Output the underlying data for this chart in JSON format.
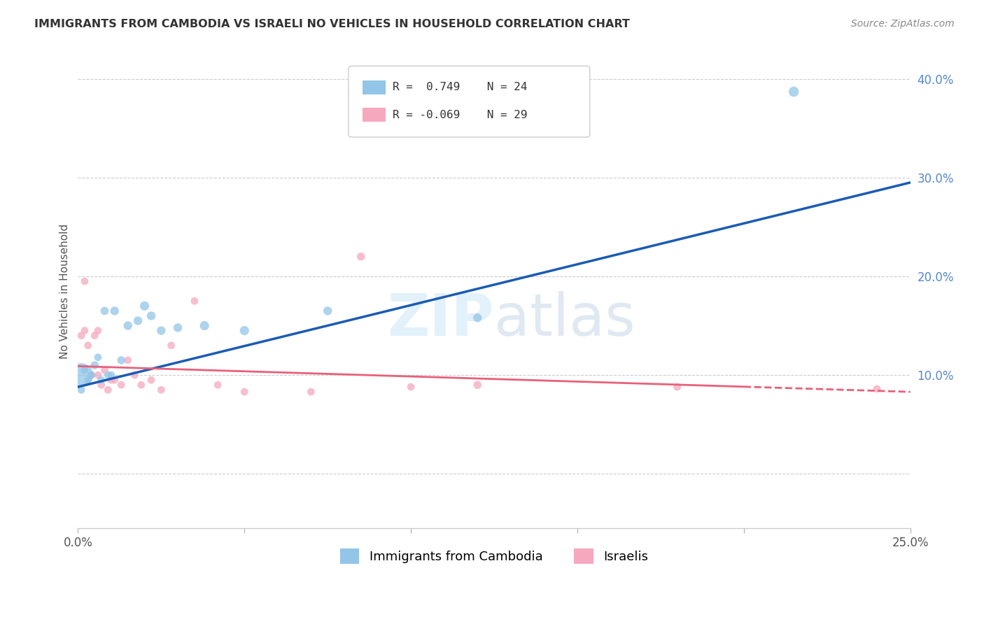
{
  "title": "IMMIGRANTS FROM CAMBODIA VS ISRAELI NO VEHICLES IN HOUSEHOLD CORRELATION CHART",
  "source": "Source: ZipAtlas.com",
  "ylabel": "No Vehicles in Household",
  "xlim": [
    0.0,
    0.25
  ],
  "ylim": [
    -0.055,
    0.425
  ],
  "xticks": [
    0.0,
    0.05,
    0.1,
    0.15,
    0.2,
    0.25
  ],
  "xtick_labels": [
    "0.0%",
    "",
    "",
    "",
    "",
    "25.0%"
  ],
  "yticks": [
    0.0,
    0.1,
    0.2,
    0.3,
    0.4
  ],
  "ytick_labels": [
    "",
    "10.0%",
    "20.0%",
    "30.0%",
    "40.0%"
  ],
  "legend_R1": "R =  0.749",
  "legend_N1": "N = 24",
  "legend_R2": "R = -0.069",
  "legend_N2": "N = 29",
  "label1": "Immigrants from Cambodia",
  "label2": "Israelis",
  "color1": "#92C5E8",
  "color2": "#F5A8BE",
  "trendline1_color": "#1A5BB5",
  "trendline2_color": "#E8607A",
  "background": "#FFFFFF",
  "watermark": "ZIPAtlas",
  "trendline1_x0": 0.0,
  "trendline1_y0": 0.088,
  "trendline1_x1": 0.25,
  "trendline1_y1": 0.295,
  "trendline2_x0": 0.0,
  "trendline2_y0": 0.109,
  "trendline2_x1": 0.25,
  "trendline2_y1": 0.083,
  "cambodia_x": [
    0.001,
    0.001,
    0.002,
    0.003,
    0.004,
    0.005,
    0.006,
    0.007,
    0.008,
    0.009,
    0.01,
    0.011,
    0.013,
    0.015,
    0.018,
    0.02,
    0.022,
    0.025,
    0.03,
    0.038,
    0.05,
    0.075,
    0.12,
    0.215
  ],
  "cambodia_y": [
    0.1,
    0.085,
    0.105,
    0.095,
    0.1,
    0.11,
    0.118,
    0.095,
    0.165,
    0.1,
    0.1,
    0.165,
    0.115,
    0.15,
    0.155,
    0.17,
    0.16,
    0.145,
    0.148,
    0.15,
    0.145,
    0.165,
    0.158,
    0.387
  ],
  "cambodia_size": [
    600,
    60,
    60,
    60,
    60,
    70,
    60,
    60,
    70,
    60,
    60,
    80,
    70,
    80,
    80,
    90,
    80,
    80,
    80,
    90,
    90,
    80,
    80,
    110
  ],
  "israeli_x": [
    0.001,
    0.002,
    0.002,
    0.003,
    0.004,
    0.005,
    0.006,
    0.006,
    0.007,
    0.008,
    0.009,
    0.01,
    0.011,
    0.013,
    0.015,
    0.017,
    0.019,
    0.022,
    0.025,
    0.028,
    0.035,
    0.042,
    0.05,
    0.07,
    0.085,
    0.1,
    0.12,
    0.18,
    0.24
  ],
  "israeli_y": [
    0.14,
    0.195,
    0.145,
    0.13,
    0.1,
    0.14,
    0.145,
    0.1,
    0.09,
    0.105,
    0.085,
    0.095,
    0.095,
    0.09,
    0.115,
    0.1,
    0.09,
    0.095,
    0.085,
    0.13,
    0.175,
    0.09,
    0.083,
    0.083,
    0.22,
    0.088,
    0.09,
    0.088,
    0.086
  ],
  "israeli_size": [
    60,
    60,
    60,
    60,
    60,
    60,
    60,
    60,
    60,
    60,
    60,
    60,
    60,
    60,
    60,
    60,
    60,
    60,
    60,
    60,
    60,
    60,
    60,
    60,
    70,
    60,
    70,
    60,
    60
  ]
}
